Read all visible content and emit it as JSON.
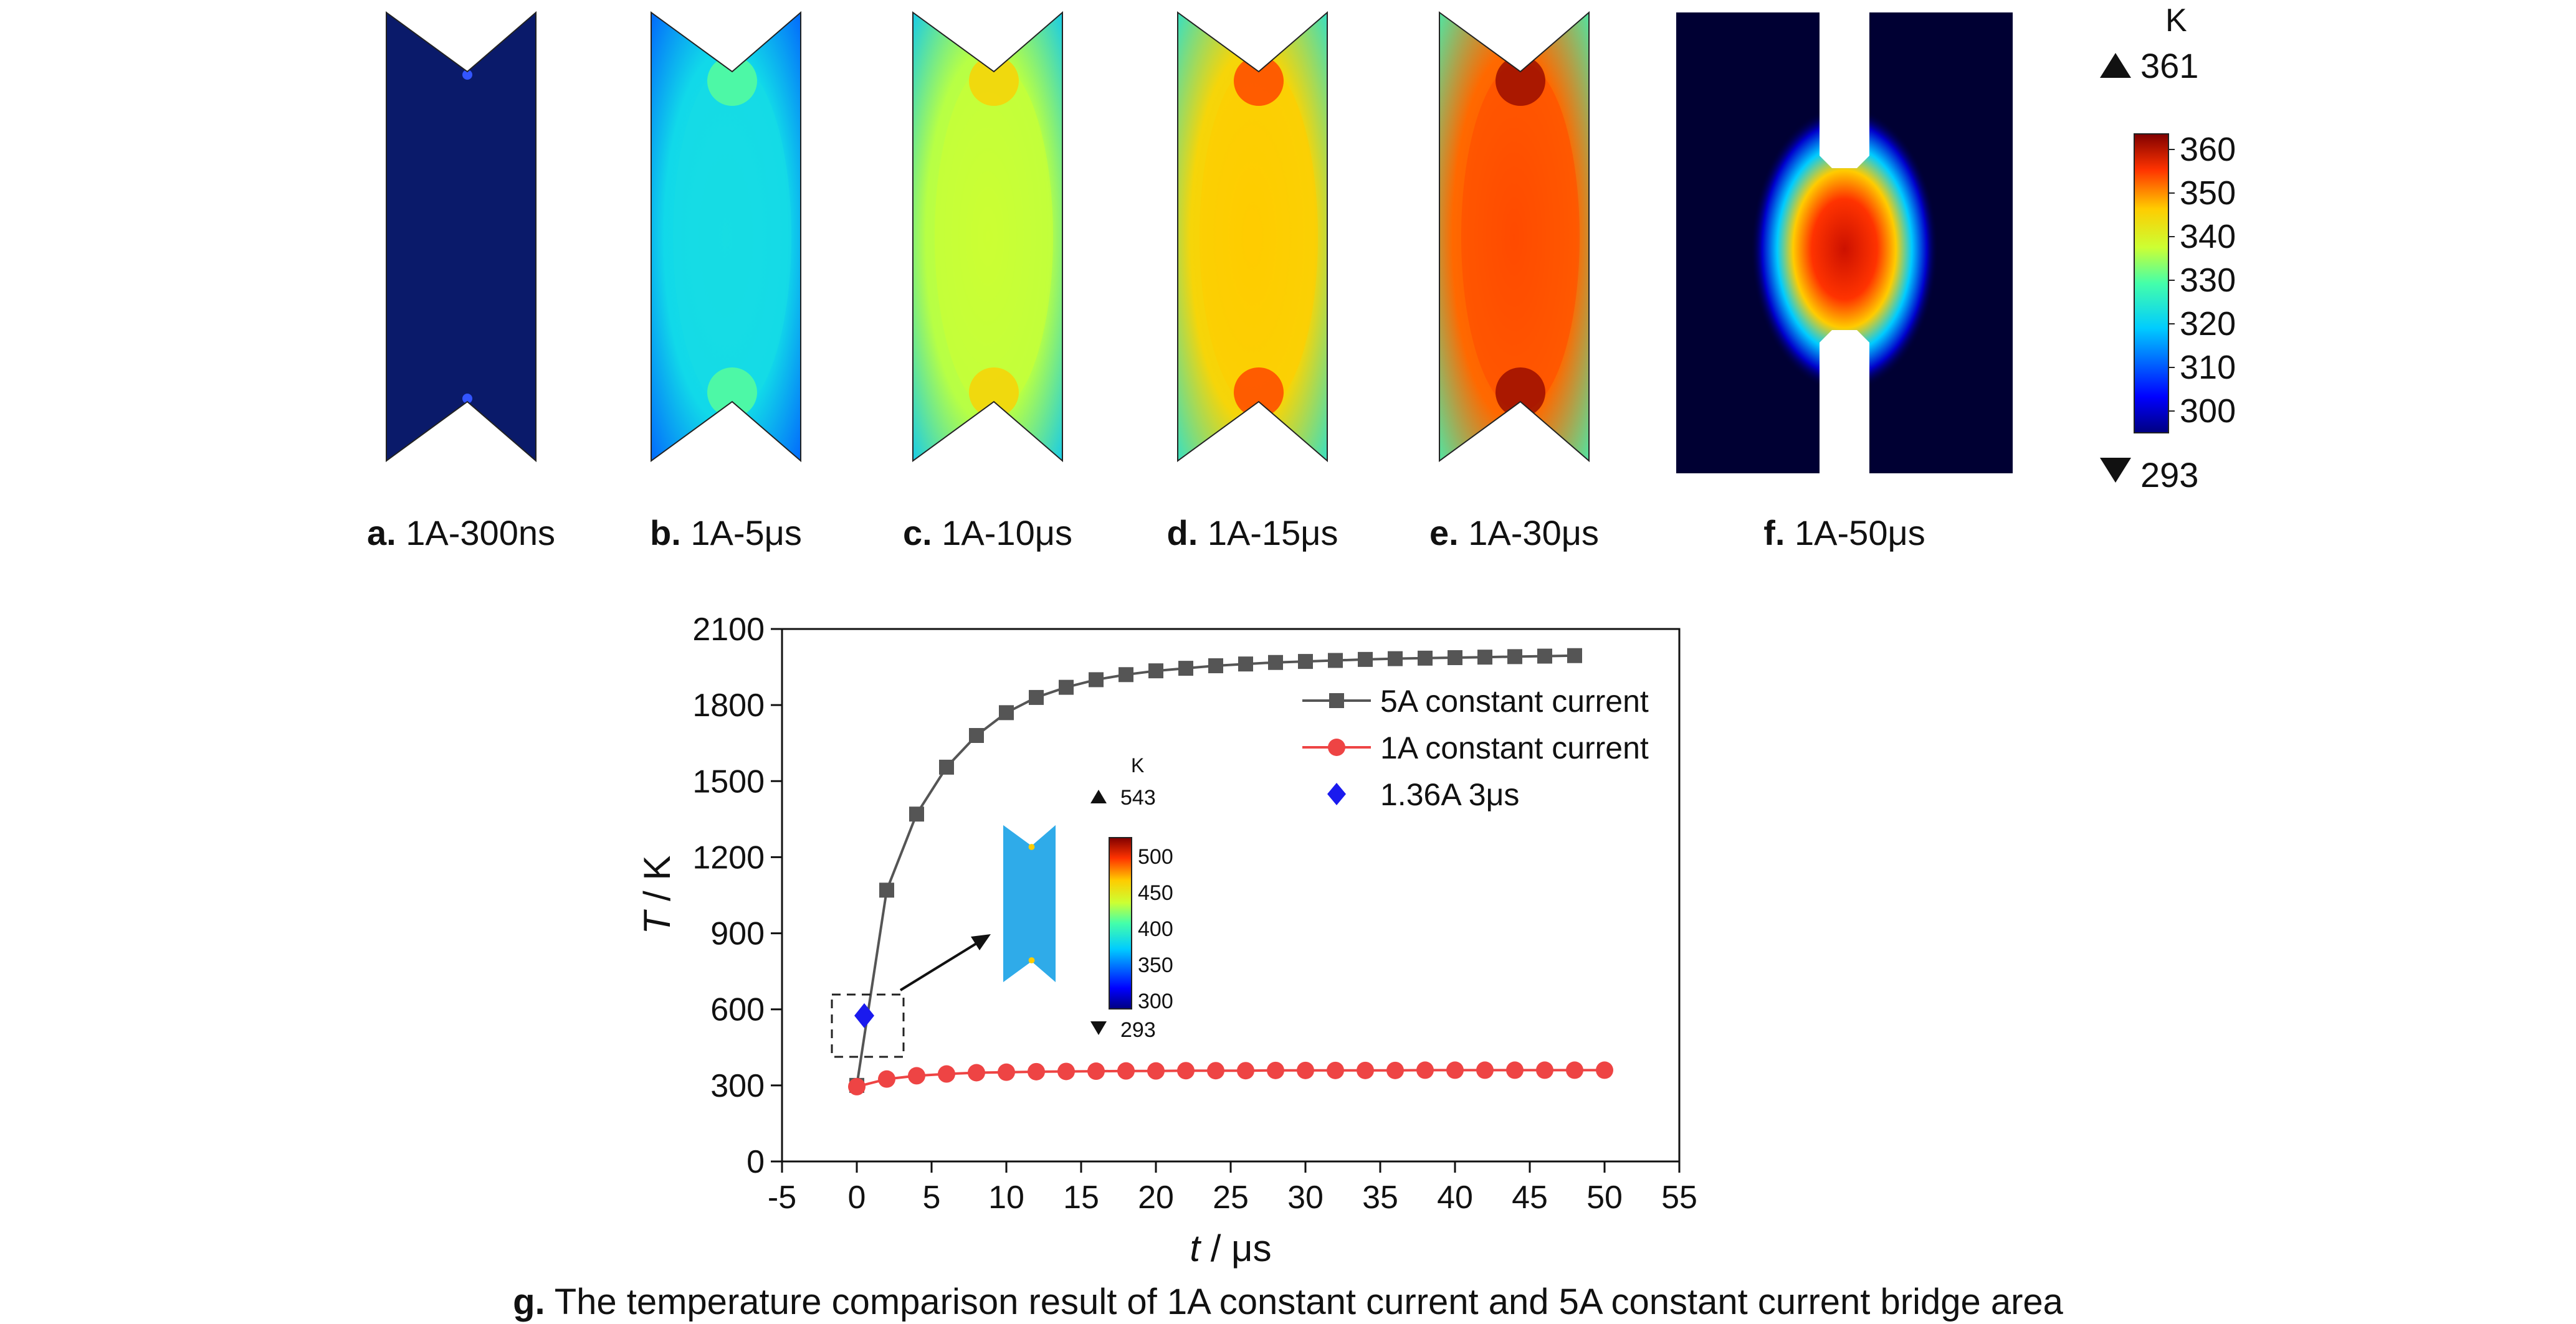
{
  "top_panels": [
    {
      "letter": "a.",
      "caption": "1A-300ns",
      "level": 0.0
    },
    {
      "letter": "b.",
      "caption": "1A-5μs",
      "level": 0.4
    },
    {
      "letter": "c.",
      "caption": "1A-10μs",
      "level": 0.62
    },
    {
      "letter": "d.",
      "caption": "1A-15μs",
      "level": 0.75
    },
    {
      "letter": "e.",
      "caption": "1A-30μs",
      "level": 0.86
    },
    {
      "letter": "f.",
      "caption": "1A-50μs",
      "level": 0.96
    }
  ],
  "colorbar_top": {
    "unit": "K",
    "max_marker": "361",
    "min_marker": "293",
    "ticks": [
      "360",
      "350",
      "340",
      "330",
      "320",
      "310",
      "300"
    ]
  },
  "inset": {
    "unit": "K",
    "max_marker": "543",
    "min_marker": "293",
    "ticks": [
      "500",
      "450",
      "400",
      "350",
      "300"
    ]
  },
  "caption_g": {
    "letter": "g.",
    "text": "The temperature comparison result of 1A constant current and 5A constant current bridge area"
  },
  "colors": {
    "series_5A": "#555555",
    "series_1A": "#ee4444",
    "marker_136": "#1a1aee"
  },
  "chart_data": {
    "type": "line",
    "xlabel_italic": "t",
    "xlabel_rest": " / μs",
    "ylabel_italic": "T",
    "ylabel_rest": " / K",
    "xlim": [
      -5,
      55
    ],
    "ylim": [
      0,
      2100
    ],
    "xticks": [
      "-5",
      "0",
      "5",
      "10",
      "15",
      "20",
      "25",
      "30",
      "35",
      "40",
      "45",
      "50",
      "55"
    ],
    "yticks": [
      "0",
      "300",
      "600",
      "900",
      "1200",
      "1500",
      "1800",
      "2100"
    ],
    "legend_position": "top-right",
    "series": [
      {
        "name": "5A constant current",
        "marker": "square",
        "x": [
          0,
          2,
          4,
          6,
          8,
          10,
          12,
          14,
          16,
          18,
          20,
          22,
          24,
          26,
          28,
          30,
          32,
          34,
          36,
          38,
          40,
          42,
          44,
          46,
          48
        ],
        "y": [
          300,
          1070,
          1370,
          1555,
          1680,
          1770,
          1830,
          1870,
          1900,
          1920,
          1935,
          1945,
          1955,
          1962,
          1968,
          1972,
          1976,
          1980,
          1983,
          1985,
          1987,
          1989,
          1991,
          1993,
          1995
        ]
      },
      {
        "name": "1A constant current",
        "marker": "circle",
        "x": [
          0,
          2,
          4,
          6,
          8,
          10,
          12,
          14,
          16,
          18,
          20,
          22,
          24,
          26,
          28,
          30,
          32,
          34,
          36,
          38,
          40,
          42,
          44,
          46,
          48,
          50
        ],
        "y": [
          295,
          325,
          338,
          345,
          350,
          352,
          354,
          355,
          356,
          357,
          357,
          358,
          358,
          358,
          359,
          359,
          359,
          359,
          359,
          360,
          360,
          360,
          360,
          360,
          360,
          360
        ]
      },
      {
        "name": "1.36A 3μs",
        "marker": "diamond",
        "x": [
          0.5
        ],
        "y": [
          575
        ]
      }
    ]
  }
}
